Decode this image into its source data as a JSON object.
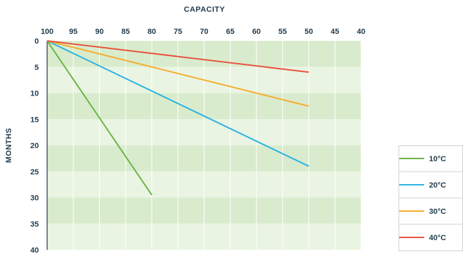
{
  "chart_data": {
    "type": "line",
    "xlabel": "CAPACITY",
    "ylabel": "MONTHS",
    "x_ticks": [
      100,
      95,
      90,
      85,
      80,
      75,
      70,
      65,
      60,
      55,
      50,
      45,
      40
    ],
    "y_ticks": [
      0,
      5,
      10,
      15,
      20,
      25,
      30,
      35,
      40
    ],
    "xlim": [
      100,
      40
    ],
    "ylim": [
      0,
      40
    ],
    "x_reversed": true,
    "y_inverted": true,
    "grid": true,
    "band_colors": [
      "#d9ebcd",
      "#eaf4e2"
    ],
    "legend_position": "right",
    "series": [
      {
        "name": "10°C",
        "color": "#6ab545",
        "points": [
          [
            100,
            0
          ],
          [
            80,
            29.5
          ]
        ]
      },
      {
        "name": "20°C",
        "color": "#2bb3e3",
        "points": [
          [
            100,
            0
          ],
          [
            50,
            24
          ]
        ]
      },
      {
        "name": "30°C",
        "color": "#f6ad2c",
        "points": [
          [
            100,
            0
          ],
          [
            50,
            12.5
          ]
        ]
      },
      {
        "name": "40°C",
        "color": "#e8543f",
        "points": [
          [
            100,
            0
          ],
          [
            50,
            6
          ]
        ]
      }
    ]
  }
}
